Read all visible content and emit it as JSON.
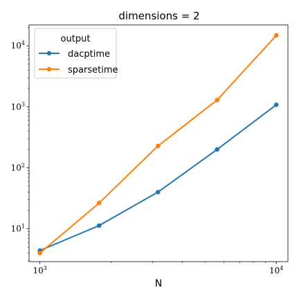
{
  "chart_data": {
    "type": "line",
    "title": "dimensions = 2",
    "xlabel": "N",
    "ylabel": "",
    "xscale": "log",
    "yscale": "log",
    "xlim": [
      900,
      11200
    ],
    "ylim": [
      2.9,
      22000
    ],
    "x_ticks": [
      {
        "value": 1000,
        "base": "10",
        "exp": "3"
      },
      {
        "value": 10000,
        "base": "10",
        "exp": "4"
      }
    ],
    "y_ticks": [
      {
        "value": 10,
        "base": "10",
        "exp": "1"
      },
      {
        "value": 100,
        "base": "10",
        "exp": "2"
      },
      {
        "value": 1000,
        "base": "10",
        "exp": "3"
      },
      {
        "value": 10000,
        "base": "10",
        "exp": "4"
      }
    ],
    "x": [
      1000,
      1780,
      3160,
      5620,
      10000
    ],
    "series": [
      {
        "name": "dacptime",
        "color": "#1f77b4",
        "values": [
          4.4,
          11.3,
          40,
          200,
          1080
        ]
      },
      {
        "name": "sparsetime",
        "color": "#ff7f0e",
        "values": [
          4.0,
          26.5,
          228,
          1290,
          14800
        ]
      }
    ],
    "legend": {
      "title": "output",
      "placement": "top-left"
    },
    "grid": false
  }
}
